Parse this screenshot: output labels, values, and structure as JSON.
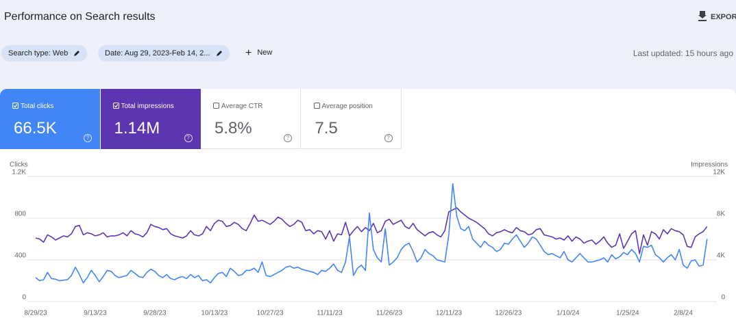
{
  "header": {
    "title": "Performance on Search results",
    "export": "EXPORT"
  },
  "filters": {
    "chips": [
      "Search type: Web",
      "Date: Aug 29, 2023-Feb 14, 2..."
    ],
    "new": "New",
    "last_updated": "Last updated: 15 hours ago"
  },
  "metrics": [
    {
      "label": "Total clicks",
      "value": "66.5K",
      "checked": true,
      "color": "#4285f4"
    },
    {
      "label": "Total impressions",
      "value": "1.14M",
      "checked": true,
      "color": "#5e35b1"
    },
    {
      "label": "Average CTR",
      "value": "5.8%",
      "checked": false
    },
    {
      "label": "Average position",
      "value": "7.5",
      "checked": false
    }
  ],
  "chart_data": {
    "type": "line",
    "categories": [
      "8/29/23",
      null,
      null,
      null,
      null,
      null,
      null,
      null,
      null,
      null,
      null,
      null,
      null,
      null,
      null,
      "9/13/23",
      null,
      null,
      null,
      null,
      null,
      null,
      null,
      null,
      null,
      null,
      null,
      null,
      null,
      null,
      "9/28/23",
      null,
      null,
      null,
      null,
      null,
      null,
      null,
      null,
      null,
      null,
      null,
      null,
      null,
      null,
      "10/13/23",
      null,
      null,
      null,
      null,
      null,
      null,
      null,
      null,
      null,
      null,
      null,
      null,
      null,
      "10/27/23",
      null,
      null,
      null,
      null,
      null,
      null,
      null,
      null,
      null,
      null,
      null,
      null,
      null,
      null,
      "11/11/23",
      null,
      null,
      null,
      null,
      null,
      null,
      null,
      null,
      null,
      null,
      null,
      null,
      null,
      null,
      "11/26/23",
      null,
      null,
      null,
      null,
      null,
      null,
      null,
      null,
      null,
      null,
      null,
      null,
      null,
      null,
      "12/11/23",
      null,
      null,
      null,
      null,
      null,
      null,
      null,
      null,
      null,
      null,
      null,
      null,
      null,
      null,
      "12/26/23",
      null,
      null,
      null,
      null,
      null,
      null,
      null,
      null,
      null,
      null,
      null,
      null,
      null,
      null,
      "1/10/24",
      null,
      null,
      null,
      null,
      null,
      null,
      null,
      null,
      null,
      null,
      null,
      null,
      null,
      null,
      "1/25/24",
      null,
      null,
      null,
      null,
      null,
      null,
      null,
      null,
      null,
      null,
      null,
      null,
      null,
      "2/8/24",
      null,
      null,
      null,
      null,
      null,
      null
    ],
    "series": [
      {
        "name": "Clicks",
        "color": "#4285f4",
        "values": [
          230,
          200,
          210,
          280,
          220,
          215,
          200,
          205,
          210,
          250,
          330,
          260,
          180,
          230,
          300,
          250,
          190,
          240,
          300,
          290,
          250,
          230,
          240,
          250,
          300,
          270,
          240,
          230,
          280,
          310,
          290,
          250,
          230,
          260,
          220,
          210,
          230,
          240,
          220,
          260,
          230,
          250,
          200,
          210,
          180,
          230,
          270,
          280,
          240,
          320,
          290,
          250,
          260,
          300,
          300,
          320,
          280,
          380,
          250,
          240,
          260,
          280,
          300,
          330,
          340,
          320,
          330,
          310,
          300,
          290,
          280,
          260,
          300,
          290,
          320,
          360,
          300,
          280,
          380,
          620,
          250,
          320,
          350,
          300,
          850,
          500,
          420,
          380,
          700,
          350,
          380,
          420,
          500,
          540,
          560,
          480,
          380,
          420,
          500,
          460,
          440,
          400,
          390,
          380,
          640,
          1130,
          820,
          700,
          680,
          720,
          600,
          560,
          520,
          580,
          540,
          520,
          480,
          500,
          560,
          550,
          600,
          640,
          580,
          520,
          560,
          620,
          600,
          540,
          480,
          450,
          460,
          440,
          420,
          480,
          400,
          380,
          420,
          460,
          420,
          380,
          380,
          390,
          400,
          420,
          380,
          450,
          410,
          430,
          470,
          450,
          500,
          460,
          380,
          530,
          520,
          540,
          450,
          420,
          380,
          420,
          450,
          400,
          500,
          350,
          320,
          390,
          400,
          340,
          350,
          600
        ]
      },
      {
        "name": "Impressions",
        "color": "#5e35b1",
        "axis": "y2",
        "values": [
          6100,
          6000,
          5700,
          6400,
          6200,
          5900,
          6100,
          6300,
          6200,
          6500,
          7200,
          7300,
          6400,
          6600,
          6500,
          6300,
          6400,
          6600,
          6200,
          6300,
          6300,
          6400,
          6600,
          6300,
          6800,
          6500,
          6400,
          6200,
          6600,
          7400,
          7200,
          7100,
          6900,
          7000,
          6500,
          6300,
          6200,
          6100,
          6300,
          6800,
          6400,
          6300,
          6500,
          7200,
          6800,
          7500,
          7800,
          7700,
          7200,
          7300,
          7600,
          7400,
          7000,
          6800,
          7500,
          8300,
          7700,
          7800,
          7600,
          7400,
          7700,
          8100,
          7900,
          7500,
          7200,
          7400,
          7800,
          7600,
          6800,
          6900,
          6500,
          6800,
          6700,
          6000,
          6800,
          5800,
          6500,
          6400,
          7600,
          6300,
          6800,
          7200,
          6700,
          7100,
          6800,
          7500,
          6600,
          6800,
          7700,
          7900,
          7400,
          7600,
          7800,
          7200,
          7000,
          7500,
          6900,
          6600,
          6300,
          6600,
          6700,
          6400,
          6200,
          6800,
          8600,
          8800,
          9000,
          8600,
          8300,
          8000,
          7800,
          7600,
          7300,
          7000,
          6500,
          6300,
          6600,
          6700,
          6900,
          6700,
          6600,
          7100,
          6800,
          6700,
          6400,
          6500,
          6900,
          7000,
          6400,
          6300,
          6200,
          6000,
          6100,
          5900,
          6300,
          5800,
          6200,
          6000,
          5600,
          5800,
          5900,
          5500,
          5800,
          6200,
          5600,
          5200,
          5400,
          6500,
          5100,
          5800,
          6500,
          6800,
          4600,
          6400,
          5400,
          6700,
          6500,
          6000,
          6900,
          6500,
          7000,
          6800,
          6700,
          6400,
          5300,
          5200,
          6200,
          6500,
          6700,
          7200
        ]
      }
    ],
    "ylim": [
      0,
      1200
    ],
    "yticks": [
      0,
      400,
      800,
      {
        "value": 1200,
        "label": "1.2K"
      }
    ],
    "y2lim": [
      0,
      12000
    ],
    "y2ticks": [
      0,
      {
        "value": 4000,
        "label": "4K"
      },
      {
        "value": 8000,
        "label": "8K"
      },
      {
        "value": 12000,
        "label": "12K"
      }
    ],
    "grid": true
  }
}
